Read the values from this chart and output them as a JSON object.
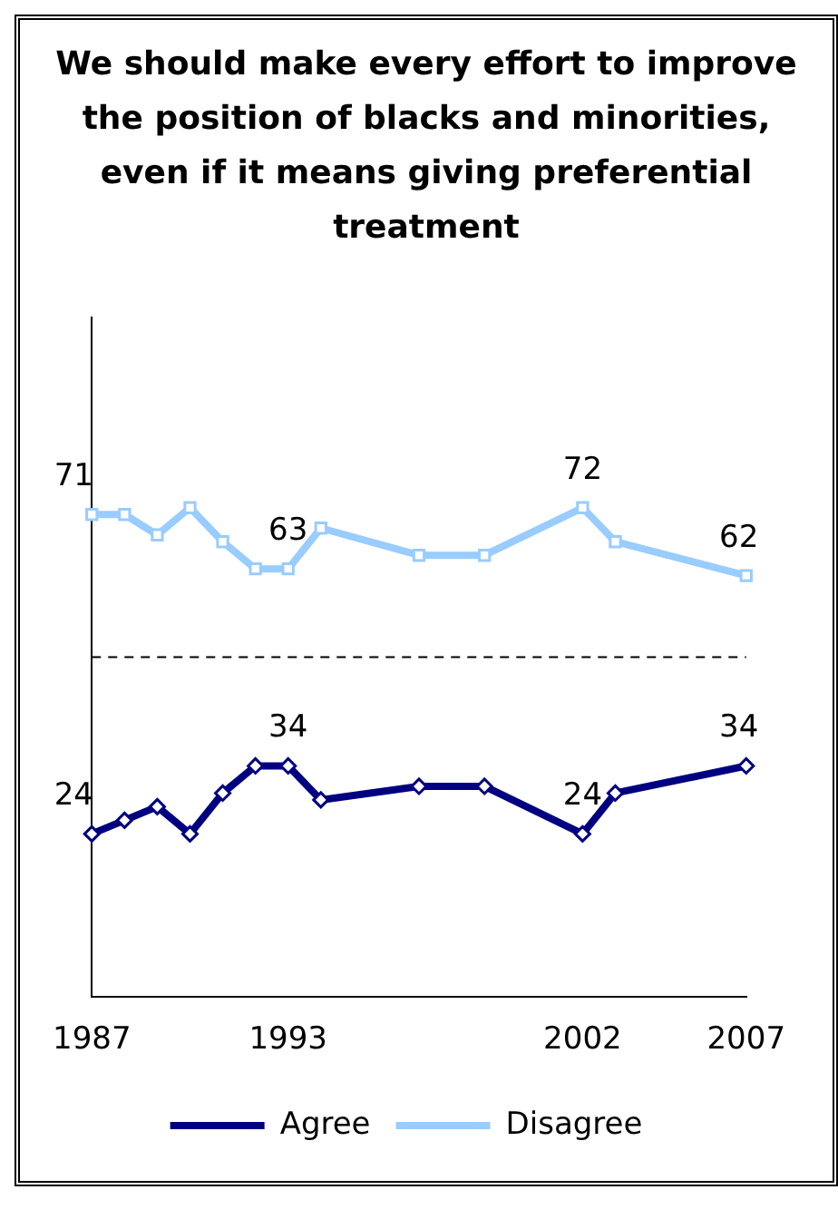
{
  "chart_data": {
    "type": "line",
    "title": "We should make every effort to improve the position of blacks and minorities, even if it means giving preferential treatment",
    "x": [
      1987,
      1988,
      1989,
      1990,
      1991,
      1992,
      1993,
      1994,
      1997,
      1999,
      2002,
      2003,
      2007
    ],
    "xlim": [
      1987,
      2007
    ],
    "xticks": [
      1987,
      1993,
      2002,
      2007
    ],
    "ylim": [
      0,
      100
    ],
    "grid": false,
    "legend": "bottom",
    "ref_lines": [
      {
        "axis": "y",
        "value": 50,
        "line_style": "dashed",
        "color": "#000000"
      }
    ],
    "series": [
      {
        "name": "Agree",
        "color": "#000080",
        "marker": "diamond",
        "values": [
          24,
          26,
          28,
          24,
          30,
          34,
          34,
          29,
          31,
          31,
          24,
          30,
          34
        ],
        "value_labels": [
          "24",
          null,
          null,
          null,
          null,
          null,
          "34",
          null,
          null,
          null,
          "24",
          null,
          "34"
        ]
      },
      {
        "name": "Disagree",
        "color": "#99ccff",
        "marker": "square",
        "values": [
          71,
          71,
          68,
          72,
          67,
          63,
          63,
          69,
          65,
          65,
          72,
          67,
          62
        ],
        "value_labels": [
          "71",
          null,
          null,
          null,
          null,
          null,
          "63",
          null,
          null,
          null,
          "72",
          null,
          "62"
        ]
      }
    ]
  }
}
